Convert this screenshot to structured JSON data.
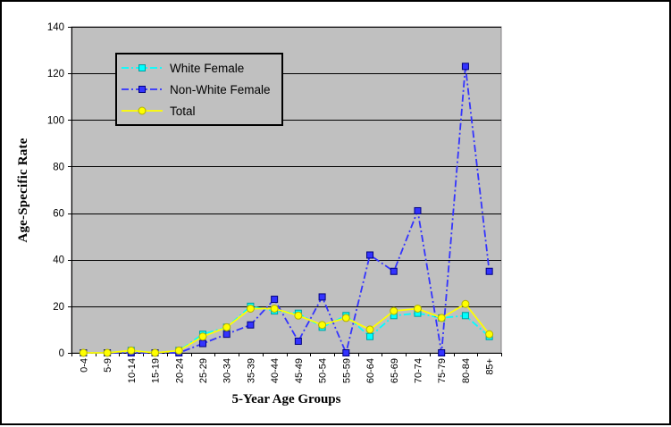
{
  "chart_data": {
    "type": "line",
    "title": "",
    "xlabel": "5-Year Age Groups",
    "ylabel": "Age-Specific Rate",
    "ylim": [
      0,
      140
    ],
    "yticks": [
      0,
      20,
      40,
      60,
      80,
      100,
      120,
      140
    ],
    "grid": "horizontal",
    "gridline_color": "#000000",
    "plot_bg": "#C0C0C0",
    "legend_position": "top-left-inside",
    "categories": [
      "0-4",
      "5-9",
      "10-14",
      "15-19",
      "20-24",
      "25-29",
      "30-34",
      "35-39",
      "40-44",
      "45-49",
      "50-54",
      "55-59",
      "60-64",
      "65-69",
      "70-74",
      "75-79",
      "80-84",
      "85+"
    ],
    "series": [
      {
        "name": "White Female",
        "color": "#00FFFF",
        "marker": "square",
        "marker_border": "#00A0A0",
        "line_style": "dash-dot",
        "values": [
          0,
          0,
          1,
          0,
          1,
          8,
          11,
          20,
          18,
          17,
          11,
          16,
          7,
          16,
          17,
          15,
          16,
          7
        ]
      },
      {
        "name": "Non-White Female",
        "color": "#3333FF",
        "marker": "square",
        "marker_border": "#000080",
        "line_style": "dash-dot",
        "values": [
          0,
          0,
          0,
          0,
          0,
          4,
          8,
          12,
          23,
          5,
          24,
          0,
          42,
          35,
          61,
          0,
          123,
          35
        ]
      },
      {
        "name": "Total",
        "color": "#FFFF00",
        "marker": "circle",
        "marker_border": "#B0B000",
        "line_style": "solid",
        "values": [
          0,
          0,
          1,
          0,
          1,
          7,
          11,
          19,
          19,
          16,
          12,
          15,
          10,
          18,
          19,
          15,
          21,
          8
        ]
      }
    ]
  }
}
